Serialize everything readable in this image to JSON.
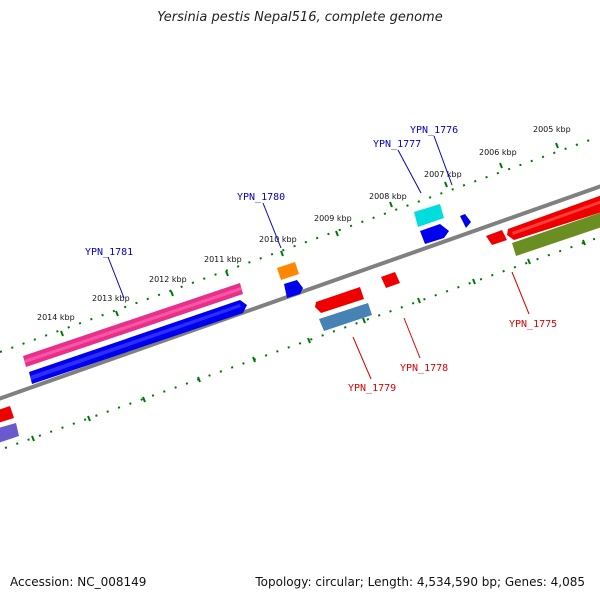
{
  "title": "Yersinia pestis Nepal516, complete genome",
  "footer": {
    "accession": "Accession: NC_008149",
    "topology": "Topology: circular; Length: 4,534,590 bp; Genes: 4,085"
  },
  "scale": {
    "tick_labels": [
      "2005 kbp",
      "2006 kbp",
      "2007 kbp",
      "2008 kbp",
      "2009 kbp",
      "2010 kbp",
      "2011 kbp",
      "2012 kbp",
      "2013 kbp",
      "2014 kbp"
    ]
  },
  "genes": [
    {
      "name": "YPN_1775",
      "strand": "reverse"
    },
    {
      "name": "YPN_1776",
      "strand": "forward"
    },
    {
      "name": "YPN_1777",
      "strand": "forward"
    },
    {
      "name": "YPN_1778",
      "strand": "reverse"
    },
    {
      "name": "YPN_1779",
      "strand": "reverse"
    },
    {
      "name": "YPN_1780",
      "strand": "forward"
    },
    {
      "name": "YPN_1781",
      "strand": "forward"
    }
  ],
  "colors": {
    "forward_label": "#0000cc",
    "reverse_label": "#dd0000",
    "backbone": "#808080",
    "ticks": "#007700"
  }
}
